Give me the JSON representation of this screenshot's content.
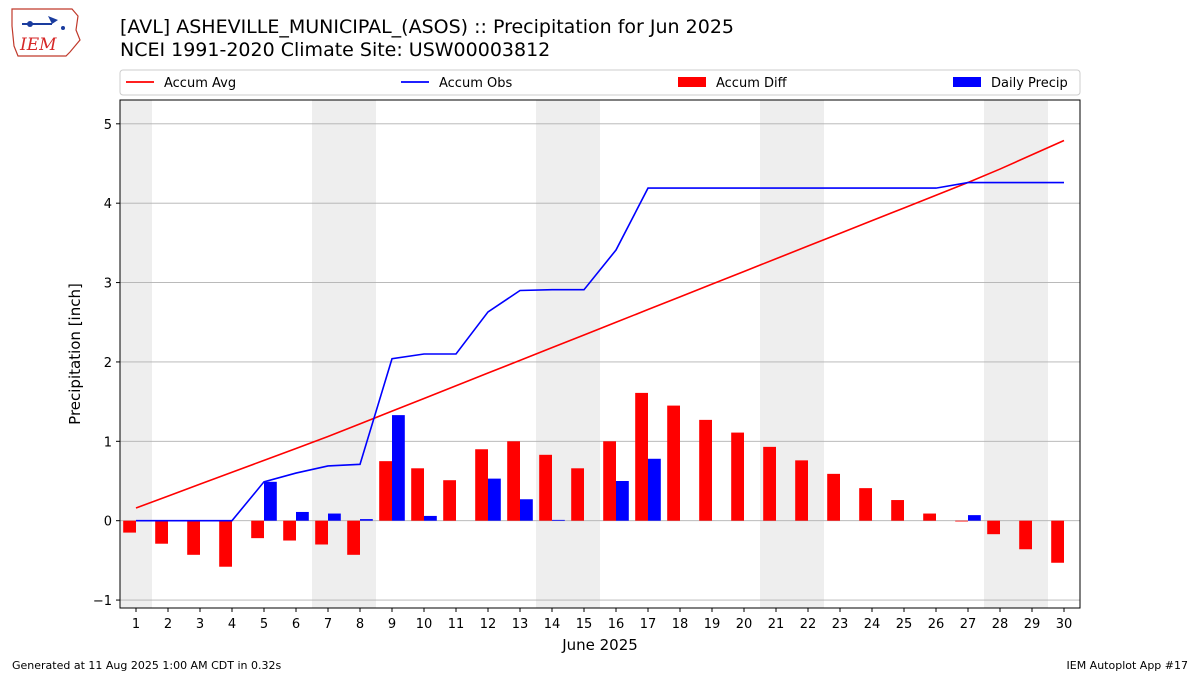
{
  "header": {
    "title_line1": "[AVL] ASHEVILLE_MUNICIPAL_(ASOS) :: Precipitation for Jun 2025",
    "title_line2": "NCEI 1991-2020 Climate Site: USW00003812",
    "logo_text": "IEM"
  },
  "footer": {
    "generated": "Generated at 11 Aug 2025 1:00 AM CDT in 0.32s",
    "app": "IEM Autoplot App #17"
  },
  "colors": {
    "accum_avg": "#ff0000",
    "accum_obs": "#0000ff",
    "accum_diff": "#ff0000",
    "daily_precip": "#0000ff",
    "weekend_shade": "#eeeeee",
    "grid": "#b0b0b0"
  },
  "chart_data": {
    "type": "bar",
    "xlabel": "June 2025",
    "ylabel": "Precipitation [inch]",
    "xlim": [
      0.5,
      30.5
    ],
    "ylim": [
      -1.1,
      5.3
    ],
    "yticks": [
      -1,
      0,
      1,
      2,
      3,
      4,
      5
    ],
    "grid": "horizontal",
    "legend_position": "top",
    "x": [
      1,
      2,
      3,
      4,
      5,
      6,
      7,
      8,
      9,
      10,
      11,
      12,
      13,
      14,
      15,
      16,
      17,
      18,
      19,
      20,
      21,
      22,
      23,
      24,
      25,
      26,
      27,
      28,
      29,
      30
    ],
    "shaded_days": [
      [
        1,
        1
      ],
      [
        7,
        8
      ],
      [
        14,
        15
      ],
      [
        21,
        22
      ],
      [
        28,
        29
      ]
    ],
    "series": [
      {
        "name": "Accum Avg",
        "kind": "line",
        "values": [
          0.16,
          0.31,
          0.46,
          0.61,
          0.76,
          0.91,
          1.06,
          1.22,
          1.38,
          1.54,
          1.7,
          1.86,
          2.02,
          2.18,
          2.34,
          2.5,
          2.66,
          2.82,
          2.98,
          3.14,
          3.3,
          3.46,
          3.62,
          3.78,
          3.94,
          4.1,
          4.26,
          4.43,
          4.61,
          4.79
        ]
      },
      {
        "name": "Accum Obs",
        "kind": "line",
        "values": [
          0.0,
          0.0,
          0.0,
          0.0,
          0.49,
          0.6,
          0.69,
          0.71,
          2.04,
          2.1,
          2.1,
          2.63,
          2.9,
          2.91,
          2.91,
          3.41,
          4.19,
          4.19,
          4.19,
          4.19,
          4.19,
          4.19,
          4.19,
          4.19,
          4.19,
          4.19,
          4.26,
          4.26,
          4.26,
          4.26
        ]
      },
      {
        "name": "Accum Diff",
        "kind": "bar",
        "values": [
          -0.15,
          -0.29,
          -0.43,
          -0.58,
          -0.22,
          -0.25,
          -0.3,
          -0.43,
          0.75,
          0.66,
          0.51,
          0.9,
          1.0,
          0.83,
          0.66,
          1.0,
          1.61,
          1.45,
          1.27,
          1.11,
          0.93,
          0.76,
          0.59,
          0.41,
          0.26,
          0.09,
          -0.01,
          -0.17,
          -0.36,
          -0.53
        ]
      },
      {
        "name": "Daily Precip",
        "kind": "bar",
        "values": [
          0.0,
          0.0,
          0.0,
          0.0,
          0.49,
          0.11,
          0.09,
          0.02,
          1.33,
          0.06,
          0.0,
          0.53,
          0.27,
          0.01,
          0.0,
          0.5,
          0.78,
          0.0,
          0.0,
          0.0,
          0.0,
          0.0,
          0.0,
          0.0,
          0.0,
          0.0,
          0.07,
          0.0,
          0.0,
          0.0
        ]
      }
    ]
  }
}
